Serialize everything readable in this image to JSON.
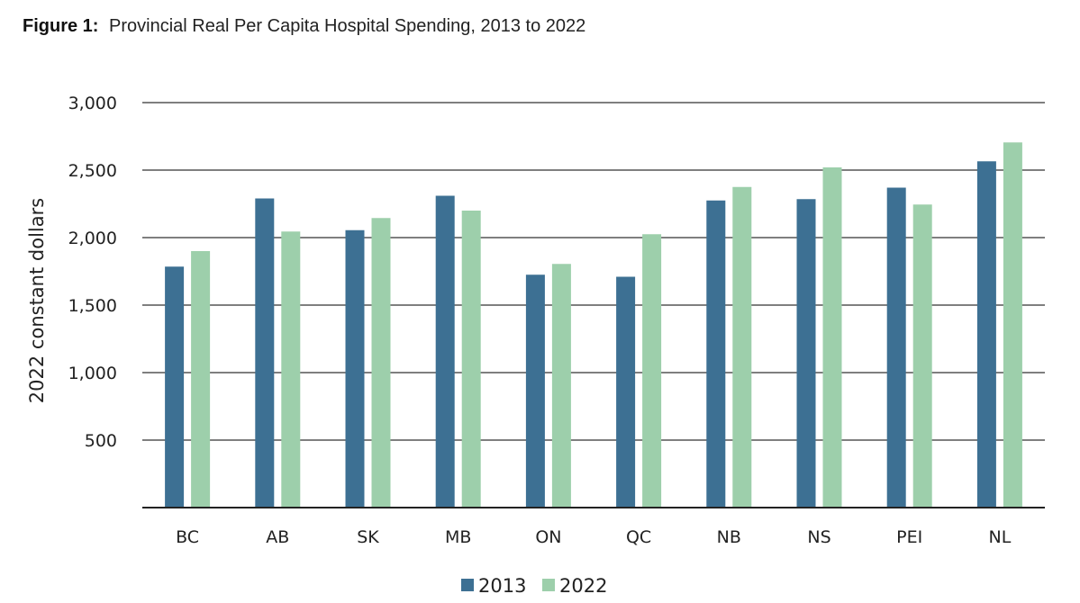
{
  "figure": {
    "label": "Figure 1:",
    "title": "Provincial Real Per Capita Hospital Spending, 2013 to 2022"
  },
  "chart_data": {
    "type": "bar",
    "title": "Provincial Real Per Capita Hospital Spending, 2013 to 2022",
    "xlabel": "",
    "ylabel": "2022 constant dollars",
    "ylim": [
      0,
      3000
    ],
    "yticks": [
      500,
      1000,
      1500,
      2000,
      2500,
      3000
    ],
    "ytick_labels": [
      "500",
      "1,000",
      "1,500",
      "2,000",
      "2,500",
      "3,000"
    ],
    "grid": true,
    "legend_position": "bottom-center",
    "categories": [
      "BC",
      "AB",
      "SK",
      "MB",
      "ON",
      "QC",
      "NB",
      "NS",
      "PEI",
      "NL"
    ],
    "series": [
      {
        "name": "2013",
        "color": "#3d7093",
        "values": [
          1785,
          2290,
          2055,
          2310,
          1725,
          1710,
          2275,
          2285,
          2370,
          2565
        ]
      },
      {
        "name": "2022",
        "color": "#9dcfab",
        "values": [
          1900,
          2045,
          2145,
          2200,
          1805,
          2025,
          2375,
          2520,
          2245,
          2705
        ]
      }
    ]
  }
}
